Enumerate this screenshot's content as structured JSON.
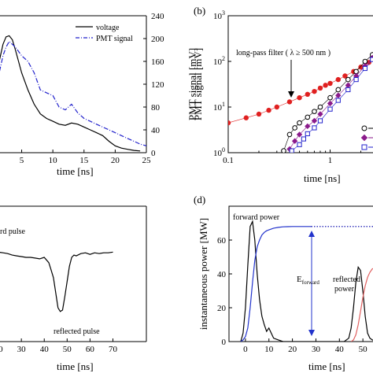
{
  "chart_data": [
    {
      "id": "a",
      "type": "line",
      "panel_label": "",
      "xlabel": "time [ns]",
      "ylabel_right": "PMT signal [mV]",
      "xlim": [
        -1,
        25
      ],
      "ylim": [
        0,
        240
      ],
      "x_ticks": [
        0,
        5,
        10,
        15,
        20,
        25
      ],
      "y_ticks": [
        0,
        40,
        80,
        120,
        160,
        200,
        240
      ],
      "legend_position": "top-right",
      "series": [
        {
          "name": "voltage",
          "color": "#000000",
          "dash": "solid",
          "x": [
            -1,
            0,
            1,
            2,
            2.5,
            3,
            3.5,
            4,
            5,
            6,
            7,
            8,
            9,
            10,
            11,
            12,
            13,
            14,
            15,
            16,
            17,
            18,
            19,
            20,
            21,
            22,
            23,
            24
          ],
          "y": [
            30,
            70,
            140,
            190,
            203,
            205,
            198,
            180,
            140,
            110,
            85,
            68,
            60,
            55,
            50,
            48,
            52,
            50,
            45,
            40,
            35,
            30,
            20,
            12,
            8,
            6,
            4,
            3
          ]
        },
        {
          "name": "PMT signal",
          "color": "#2222cc",
          "dash": "dashdot",
          "x": [
            -1,
            0,
            1,
            2,
            2.5,
            3,
            3.5,
            4,
            5,
            6,
            7,
            8,
            9,
            10,
            11,
            12,
            13,
            14,
            15,
            16,
            17,
            18,
            19,
            20,
            21,
            22,
            23,
            24,
            25
          ],
          "y": [
            40,
            70,
            120,
            170,
            185,
            195,
            190,
            185,
            170,
            160,
            140,
            110,
            105,
            100,
            80,
            75,
            85,
            70,
            60,
            55,
            50,
            45,
            40,
            35,
            30,
            25,
            20,
            15,
            12
          ]
        }
      ]
    },
    {
      "id": "b",
      "type": "scatter",
      "panel_label": "(b)",
      "xlabel": "time [ns]",
      "ylabel": "PMT signal [mV]",
      "xscale": "log",
      "yscale": "log",
      "xlim": [
        0.1,
        3.5
      ],
      "ylim": [
        1,
        1000
      ],
      "x_ticks": [
        0.1,
        1
      ],
      "x_tick_labels": [
        "0.1",
        "1"
      ],
      "y_ticks": [
        1,
        10,
        100,
        1000
      ],
      "annotation": "long-pass filter (  λ ≥ 500 nm )",
      "series": [
        {
          "marker": "filled-circle",
          "color": "#e02020",
          "x": [
            0.1,
            0.15,
            0.2,
            0.25,
            0.3,
            0.4,
            0.5,
            0.6,
            0.7,
            0.8,
            0.9,
            1.0,
            1.2,
            1.4,
            1.7,
            2.0,
            2.4,
            2.8,
            3.2
          ],
          "y": [
            4.5,
            5.8,
            7,
            8.5,
            10,
            13,
            16,
            19,
            22,
            26,
            30,
            33,
            40,
            48,
            60,
            75,
            95,
            115,
            140
          ]
        },
        {
          "marker": "open-circle",
          "color": "#000000",
          "x": [
            0.35,
            0.4,
            0.45,
            0.5,
            0.6,
            0.7,
            0.8,
            1.0,
            1.2,
            1.5,
            1.8,
            2.2,
            2.6,
            3.0
          ],
          "y": [
            1.1,
            2.5,
            3.5,
            4.5,
            6,
            8,
            10,
            16,
            24,
            40,
            60,
            100,
            140,
            180
          ]
        },
        {
          "marker": "filled-diamond",
          "color": "#8b1a8b",
          "x": [
            0.4,
            0.45,
            0.5,
            0.6,
            0.7,
            0.8,
            1.0,
            1.2,
            1.5,
            1.8,
            2.2,
            2.6,
            3.0
          ],
          "y": [
            1.2,
            1.8,
            2.5,
            3.8,
            5,
            7,
            12,
            18,
            30,
            48,
            80,
            120,
            160
          ]
        },
        {
          "marker": "open-square",
          "color": "#2222cc",
          "x": [
            0.42,
            0.5,
            0.55,
            0.6,
            0.7,
            0.8,
            1.0,
            1.2,
            1.5,
            1.8,
            2.2,
            2.6,
            3.0
          ],
          "y": [
            1.1,
            1.5,
            2,
            2.6,
            3.5,
            5,
            9,
            14,
            24,
            40,
            70,
            110,
            150
          ]
        }
      ]
    },
    {
      "id": "c",
      "type": "line",
      "panel_label": "",
      "xlabel": "time [ns]",
      "xlim": [
        10,
        75
      ],
      "x_ticks": [
        20,
        30,
        40,
        50,
        60,
        70
      ],
      "ylim": [
        -1.2,
        0.6
      ],
      "annotations": [
        "rd pulse",
        "reflected pulse"
      ],
      "series": [
        {
          "color": "#000000",
          "x": [
            10,
            11,
            12,
            13,
            14,
            15,
            16,
            18,
            20,
            22,
            24,
            26,
            28,
            30,
            32,
            34,
            36,
            38,
            40,
            42,
            43,
            44,
            45,
            46,
            47,
            48,
            49,
            50,
            51,
            52,
            53,
            54,
            56,
            58,
            60,
            62,
            64,
            66,
            68,
            70
          ],
          "y": [
            0.02,
            0.01,
            0.02,
            0,
            -0.01,
            0,
            0.01,
            0,
            -0.01,
            -0.02,
            -0.03,
            -0.05,
            -0.06,
            -0.07,
            -0.08,
            -0.08,
            -0.09,
            -0.1,
            -0.08,
            -0.15,
            -0.25,
            -0.35,
            -0.55,
            -0.75,
            -0.8,
            -0.78,
            -0.6,
            -0.4,
            -0.2,
            -0.08,
            -0.05,
            -0.06,
            -0.03,
            -0.02,
            -0.04,
            -0.02,
            -0.03,
            -0.02,
            -0.02,
            -0.01
          ]
        }
      ]
    },
    {
      "id": "d",
      "type": "line",
      "panel_label": "(d)",
      "xlabel": "time [ns]",
      "ylabel": "instantaneous power [MW]",
      "xlim": [
        -7,
        60
      ],
      "ylim": [
        0,
        80
      ],
      "x_ticks": [
        0,
        10,
        20,
        30,
        40,
        50
      ],
      "y_ticks": [
        0,
        20,
        40,
        60
      ],
      "annotations": [
        "forward power",
        "reflected",
        "power"
      ],
      "e_label": "E",
      "e_sub": "forward",
      "series": [
        {
          "color": "#000000",
          "x": [
            -2,
            -1,
            0,
            1,
            2,
            3,
            4,
            5,
            6,
            7,
            8,
            9,
            10,
            11,
            12,
            14,
            16,
            20,
            25,
            30,
            35,
            40,
            42,
            44,
            45,
            46,
            47,
            48,
            49,
            50,
            51,
            52,
            53,
            54,
            56,
            58
          ],
          "y": [
            0,
            5,
            20,
            45,
            68,
            71,
            60,
            40,
            25,
            15,
            10,
            6,
            8,
            5,
            2,
            1,
            0,
            0,
            0,
            0,
            0,
            0,
            0,
            2,
            8,
            20,
            35,
            44,
            42,
            30,
            15,
            5,
            2,
            1,
            0,
            0
          ]
        },
        {
          "color": "#2233cc",
          "x": [
            -2,
            -1,
            0,
            1,
            2,
            3,
            4,
            5,
            6,
            7,
            8,
            9,
            10,
            12,
            14,
            16,
            18,
            20,
            22,
            25,
            28
          ],
          "y": [
            0,
            1,
            3,
            8,
            20,
            35,
            48,
            56,
            60,
            63,
            64.5,
            65.5,
            66,
            67,
            67.5,
            67.8,
            67.9,
            68,
            68,
            68,
            68
          ]
        },
        {
          "color": "#0000aa",
          "dash": "dotted",
          "x": [
            28,
            35,
            40,
            45,
            50,
            55,
            60
          ],
          "y": [
            68,
            68,
            68,
            68,
            68,
            68,
            68
          ]
        },
        {
          "color": "#e06060",
          "x": [
            45,
            46,
            47,
            48,
            49,
            50,
            51,
            52,
            53,
            54,
            56,
            58,
            60
          ],
          "y": [
            0,
            1,
            4,
            10,
            18,
            26,
            33,
            38,
            41,
            43,
            44,
            44,
            44
          ]
        }
      ]
    }
  ]
}
